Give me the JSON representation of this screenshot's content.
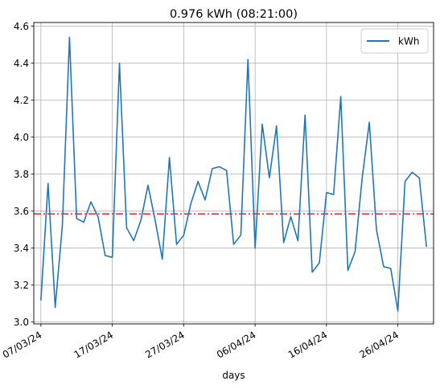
{
  "chart_data": {
    "type": "line",
    "title": "0.976 kWh (08:21:00)",
    "xlabel": "days",
    "ylabel": "",
    "x_start": "2024-03-07",
    "x_ticks": [
      "07/03/24",
      "17/03/24",
      "27/03/24",
      "06/04/24",
      "16/04/24",
      "26/04/24"
    ],
    "x_range": [
      "2024-03-06",
      "2024-05-01"
    ],
    "ylim": [
      2.99,
      4.62
    ],
    "y_ticks": [
      "3.0",
      "3.2",
      "3.4",
      "3.6",
      "3.8",
      "4.0",
      "4.2",
      "4.4",
      "4.6"
    ],
    "grid": true,
    "legend": "top-right",
    "series": [
      {
        "name": "kWh",
        "color": "#1f77b4",
        "values": [
          3.12,
          3.75,
          3.08,
          3.52,
          4.54,
          3.56,
          3.54,
          3.65,
          3.57,
          3.36,
          3.35,
          4.4,
          3.51,
          3.44,
          3.55,
          3.74,
          3.55,
          3.34,
          3.89,
          3.42,
          3.47,
          3.64,
          3.76,
          3.66,
          3.83,
          3.84,
          3.82,
          3.42,
          3.47,
          4.42,
          3.4,
          4.07,
          3.78,
          4.06,
          3.43,
          3.57,
          3.44,
          4.12,
          3.27,
          3.32,
          3.7,
          3.69,
          4.22,
          3.28,
          3.38,
          3.78,
          4.08,
          3.5,
          3.3,
          3.29,
          3.06,
          3.76,
          3.81,
          3.78,
          3.41
        ]
      }
    ],
    "hline": {
      "value": 3.585,
      "color": "#d62728",
      "style": "dash-dot"
    }
  }
}
